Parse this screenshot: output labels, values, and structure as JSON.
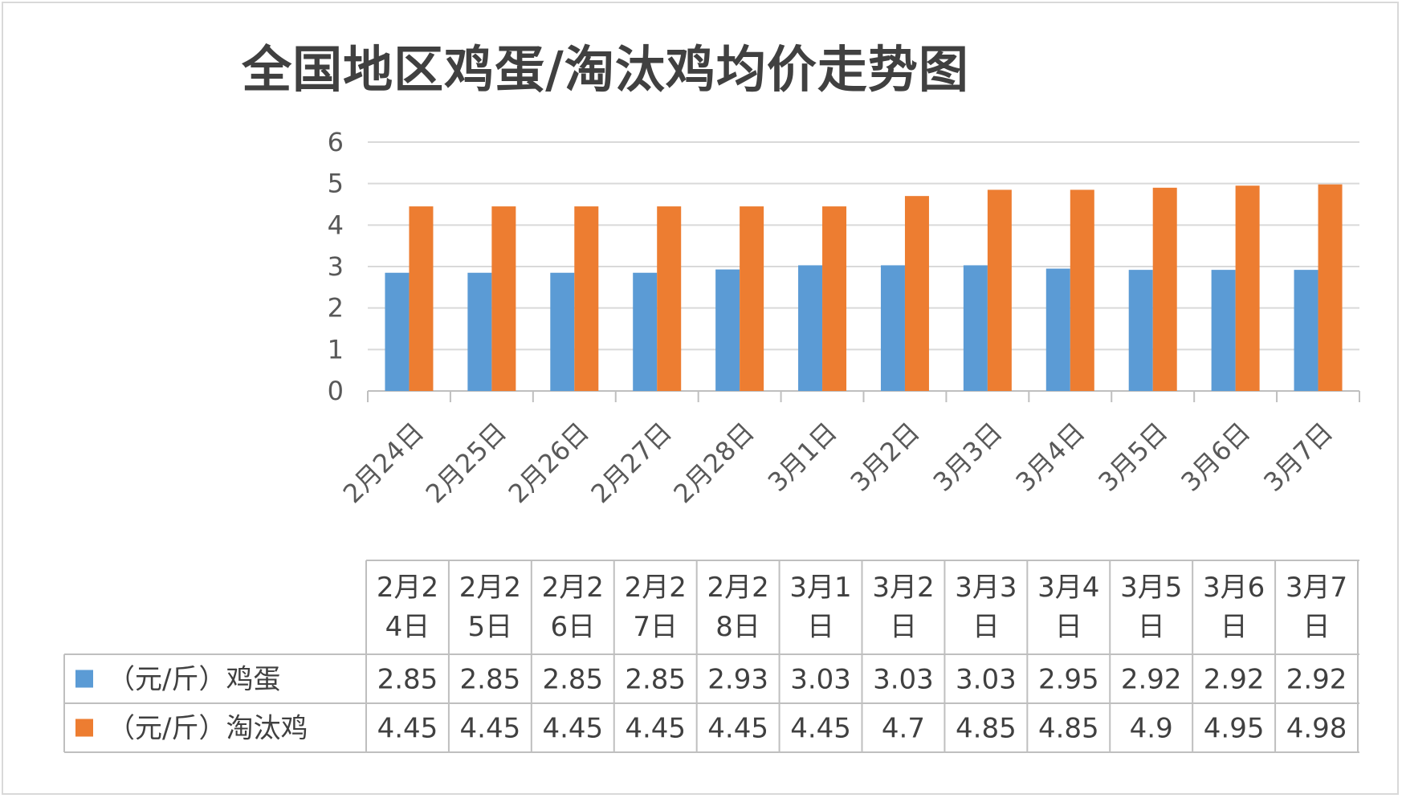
{
  "chart_data": {
    "type": "bar",
    "title": "全国地区鸡蛋/淘汰鸡均价走势图",
    "categories": [
      "2月24日",
      "2月25日",
      "2月26日",
      "2月27日",
      "2月28日",
      "3月1日",
      "3月2日",
      "3月3日",
      "3月4日",
      "3月5日",
      "3月6日",
      "3月7日"
    ],
    "table_header": [
      [
        "2月2",
        "4日"
      ],
      [
        "2月2",
        "5日"
      ],
      [
        "2月2",
        "6日"
      ],
      [
        "2月2",
        "7日"
      ],
      [
        "2月2",
        "8日"
      ],
      [
        "3月1",
        "日"
      ],
      [
        "3月2",
        "日"
      ],
      [
        "3月3",
        "日"
      ],
      [
        "3月4",
        "日"
      ],
      [
        "3月5",
        "日"
      ],
      [
        "3月6",
        "日"
      ],
      [
        "3月7",
        "日"
      ]
    ],
    "series": [
      {
        "name": "（元/斤）鸡蛋",
        "color": "#5b9bd5",
        "values": [
          2.85,
          2.85,
          2.85,
          2.85,
          2.93,
          3.03,
          3.03,
          3.03,
          2.95,
          2.92,
          2.92,
          2.92
        ],
        "labels": [
          "2.85",
          "2.85",
          "2.85",
          "2.85",
          "2.93",
          "3.03",
          "3.03",
          "3.03",
          "2.95",
          "2.92",
          "2.92",
          "2.92"
        ]
      },
      {
        "name": "（元/斤）淘汰鸡",
        "color": "#ed7d31",
        "values": [
          4.45,
          4.45,
          4.45,
          4.45,
          4.45,
          4.45,
          4.7,
          4.85,
          4.85,
          4.9,
          4.95,
          4.98
        ],
        "labels": [
          "4.45",
          "4.45",
          "4.45",
          "4.45",
          "4.45",
          "4.45",
          "4.7",
          "4.85",
          "4.85",
          "4.9",
          "4.95",
          "4.98"
        ]
      }
    ],
    "ylim": [
      0,
      6
    ],
    "yticks": [
      "0",
      "1",
      "2",
      "3",
      "4",
      "5",
      "6"
    ],
    "grid": true,
    "legend": "data-table"
  }
}
